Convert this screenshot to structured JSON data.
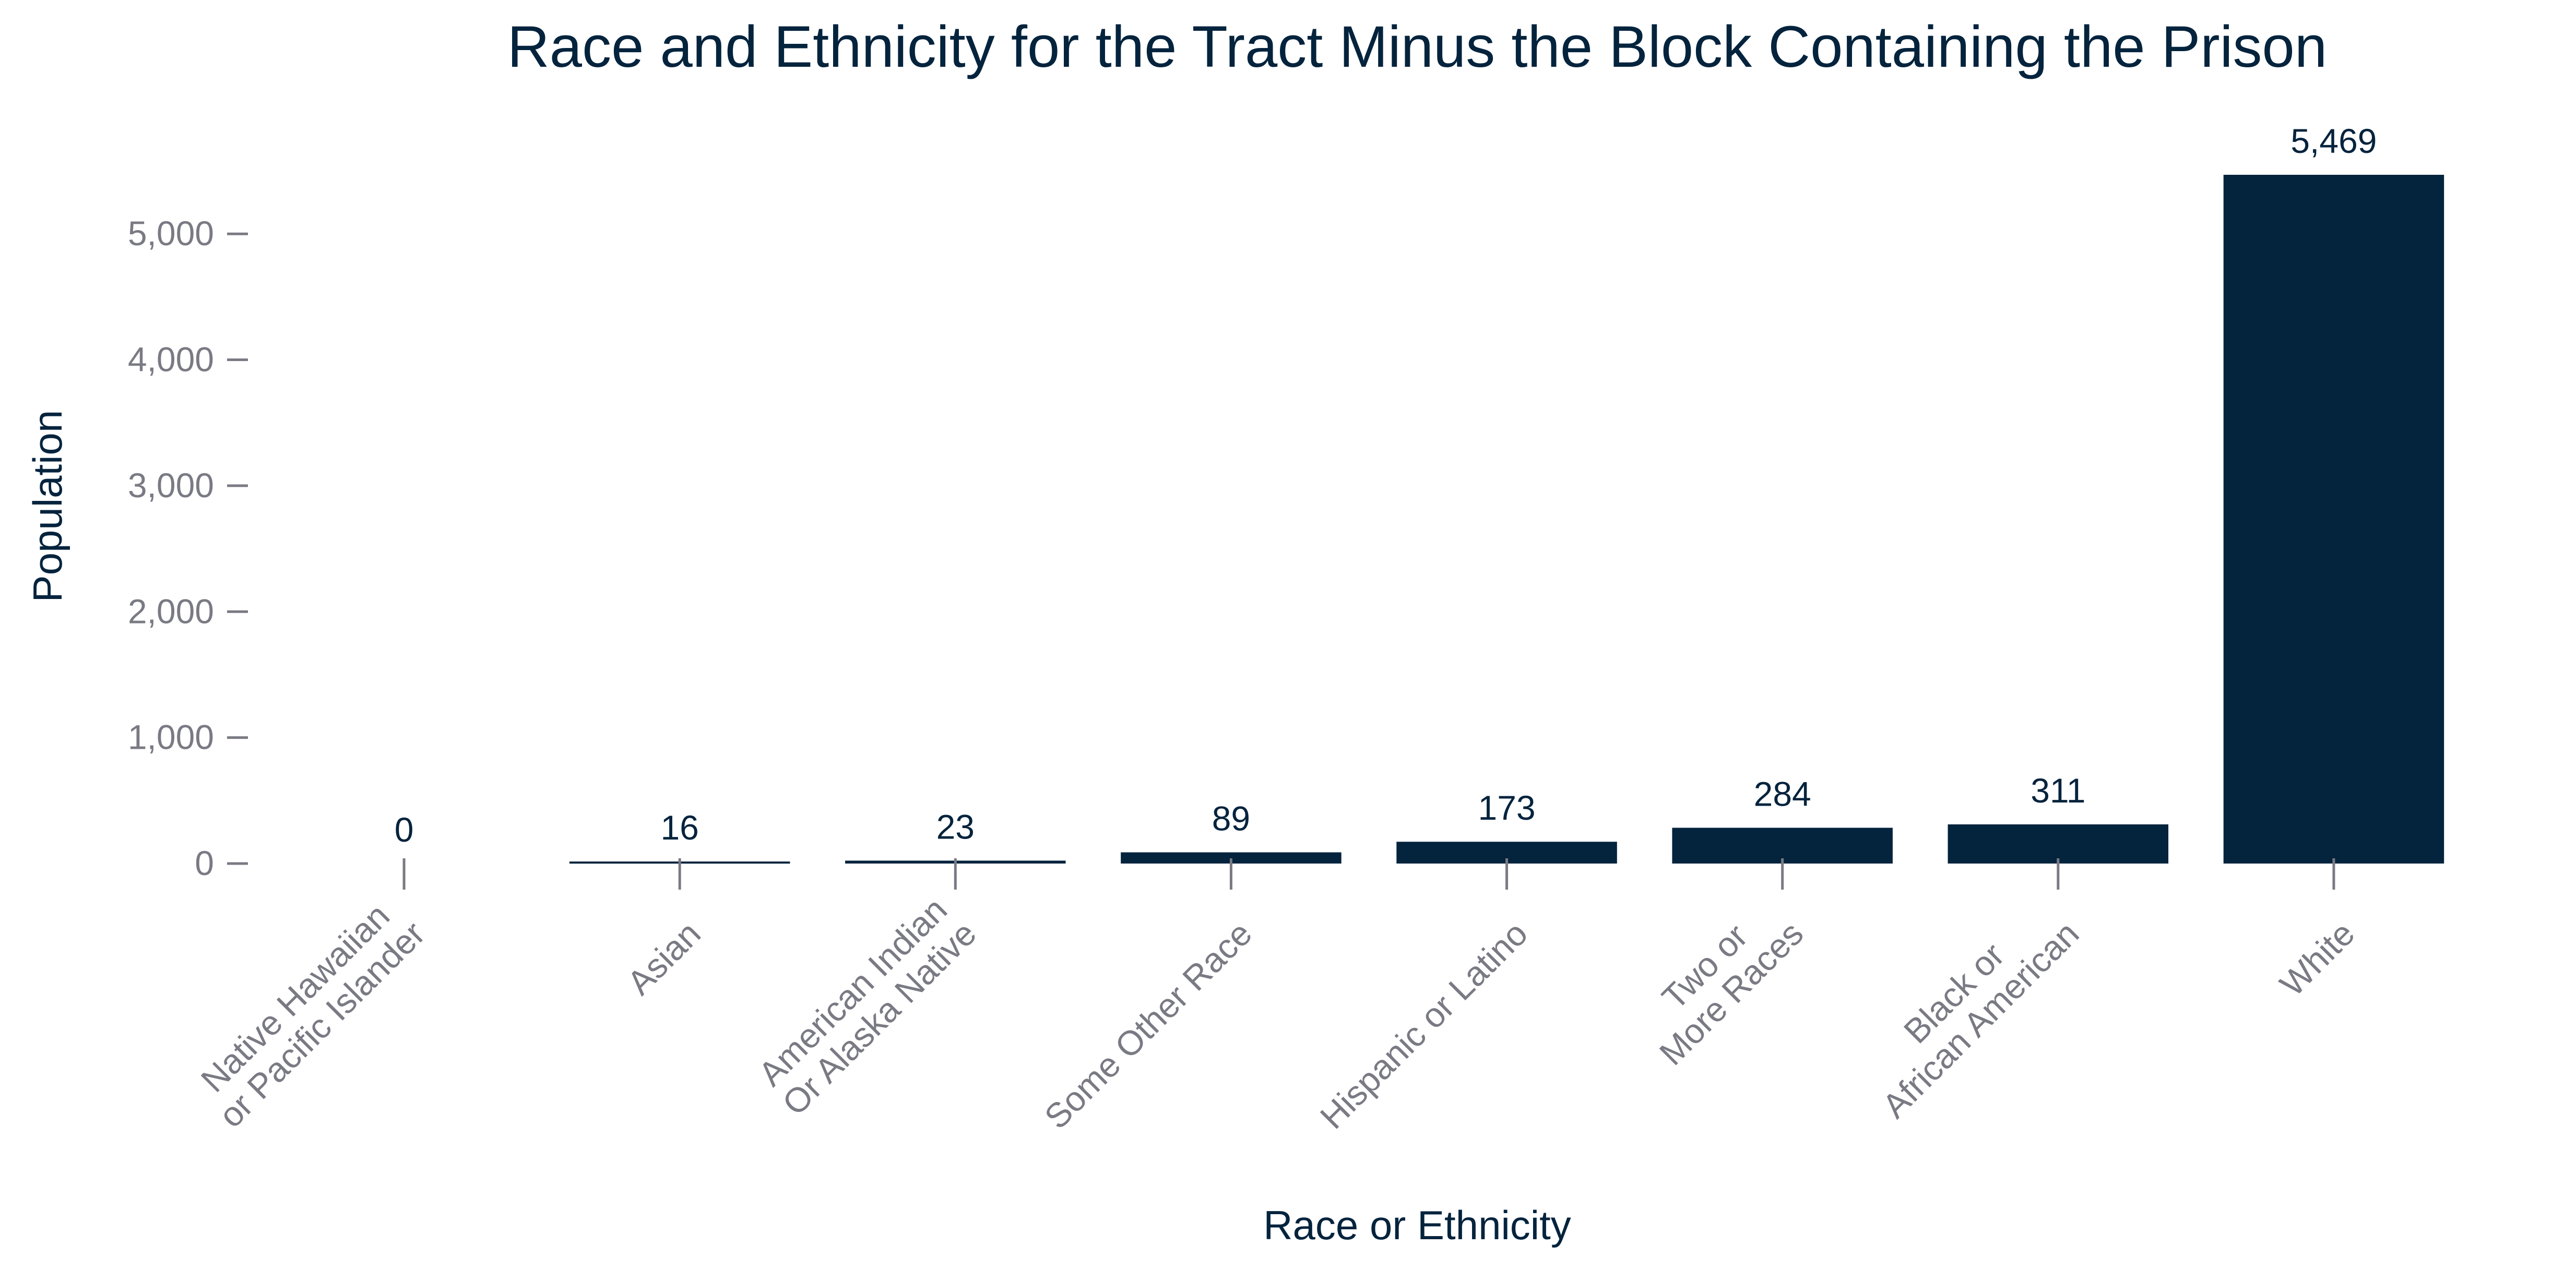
{
  "chart_data": {
    "type": "bar",
    "title": "Race and Ethnicity for the Tract Minus the Block Containing the Prison",
    "xlabel": "Race or Ethnicity",
    "ylabel": "Population",
    "categories": [
      "Native Hawaiian\nor Pacific Islander",
      "Asian",
      "American Indian\nOr Alaska Native",
      "Some Other Race",
      "Hispanic or Latino",
      "Two or\nMore Races",
      "Black or\nAfrican American",
      "White"
    ],
    "values": [
      0,
      16,
      23,
      89,
      173,
      284,
      311,
      5469
    ],
    "value_labels": [
      "0",
      "16",
      "23",
      "89",
      "173",
      "284",
      "311",
      "5,469"
    ],
    "yticks": [
      0,
      1000,
      2000,
      3000,
      4000,
      5000
    ],
    "ytick_labels": [
      "0",
      "1,000",
      "2,000",
      "3,000",
      "4,000",
      "5,000"
    ],
    "ylim": [
      0,
      5469
    ],
    "grid": false,
    "legend": "none",
    "bar_color": "#04233d"
  }
}
